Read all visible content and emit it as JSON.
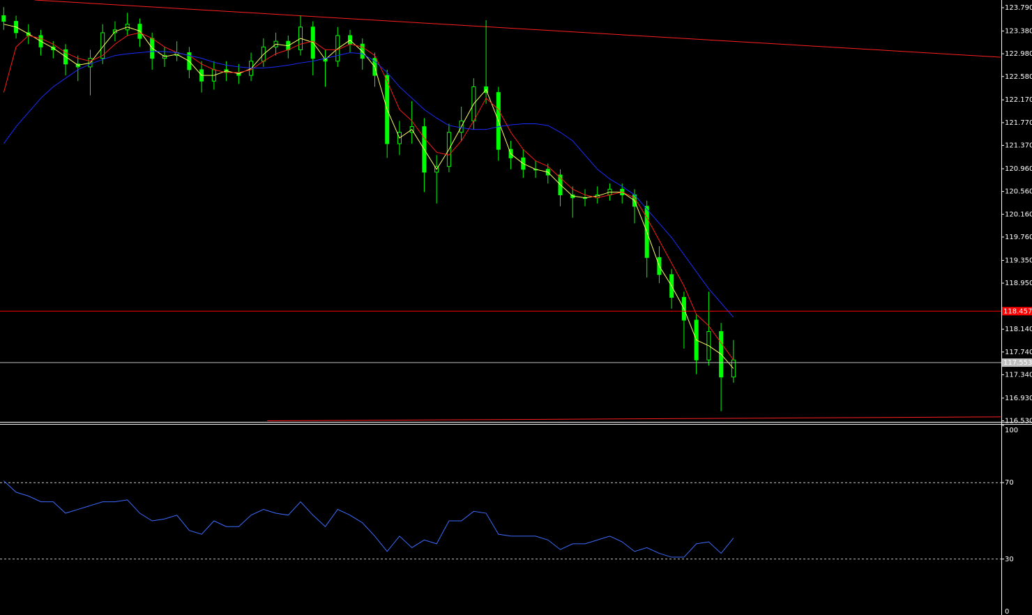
{
  "chart_data": [
    {
      "type": "candlestick",
      "xlim": [
        -0.3,
        80.6
      ],
      "ylim": [
        116.5,
        123.925
      ],
      "yticks": [
        {
          "value": 123.79,
          "label": "123.790"
        },
        {
          "value": 123.38,
          "label": "123.380"
        },
        {
          "value": 122.98,
          "label": "122.980"
        },
        {
          "value": 122.58,
          "label": "122.580"
        },
        {
          "value": 122.17,
          "label": "122.170"
        },
        {
          "value": 121.77,
          "label": "121.770"
        },
        {
          "value": 121.37,
          "label": "121.370"
        },
        {
          "value": 120.96,
          "label": "120.960"
        },
        {
          "value": 120.56,
          "label": "120.560"
        },
        {
          "value": 120.16,
          "label": "120.160"
        },
        {
          "value": 119.76,
          "label": "119.760"
        },
        {
          "value": 119.35,
          "label": "119.350"
        },
        {
          "value": 118.95,
          "label": "118.950"
        },
        {
          "value": 118.14,
          "label": "118.140"
        },
        {
          "value": 117.74,
          "label": "117.740"
        },
        {
          "value": 117.34,
          "label": "117.340"
        },
        {
          "value": 116.93,
          "label": "116.930"
        },
        {
          "value": 116.53,
          "label": "116.530"
        }
      ],
      "color": "#00ff00",
      "open": [
        123.65,
        123.55,
        123.35,
        123.3,
        123.1,
        123.05,
        122.8,
        122.75,
        122.9,
        123.35,
        123.4,
        123.5,
        123.25,
        122.9,
        122.95,
        123.0,
        122.7,
        122.5,
        122.7,
        122.65,
        122.6,
        122.85,
        123.1,
        123.2,
        123.05,
        123.45,
        122.9,
        122.85,
        123.3,
        123.15,
        122.9,
        122.6,
        121.4,
        121.6,
        121.7,
        120.9,
        121.0,
        121.6,
        121.8,
        122.4,
        122.3,
        121.3,
        121.15,
        120.95,
        120.95,
        120.85,
        120.5,
        120.45,
        120.45,
        120.5,
        120.6,
        120.5,
        120.3,
        119.4,
        119.1,
        118.7,
        118.3,
        117.6,
        118.1,
        117.3
      ],
      "high": [
        123.8,
        123.65,
        123.5,
        123.4,
        123.2,
        123.15,
        122.95,
        123.05,
        123.5,
        123.55,
        123.7,
        123.6,
        123.35,
        123.1,
        123.2,
        123.1,
        122.85,
        122.85,
        122.85,
        122.8,
        123.0,
        123.25,
        123.35,
        123.3,
        123.65,
        123.55,
        123.05,
        123.45,
        123.4,
        123.25,
        123.0,
        122.7,
        121.8,
        122.15,
        121.85,
        121.2,
        121.75,
        122.05,
        122.55,
        123.57,
        122.4,
        121.45,
        121.3,
        121.1,
        121.05,
        120.95,
        120.65,
        120.6,
        120.65,
        120.7,
        120.7,
        120.6,
        120.4,
        119.6,
        119.2,
        118.8,
        118.4,
        118.8,
        118.25,
        117.95
      ],
      "low": [
        123.4,
        123.25,
        123.15,
        122.95,
        122.9,
        122.6,
        122.5,
        122.25,
        122.8,
        123.2,
        123.3,
        123.1,
        122.7,
        122.75,
        122.85,
        122.55,
        122.3,
        122.35,
        122.5,
        122.45,
        122.5,
        122.75,
        122.95,
        122.9,
        122.95,
        122.6,
        122.4,
        122.75,
        123.0,
        122.7,
        122.4,
        121.15,
        121.2,
        121.4,
        120.55,
        120.35,
        120.9,
        121.45,
        121.65,
        122.1,
        121.1,
        120.95,
        120.8,
        120.8,
        120.7,
        120.3,
        120.1,
        120.3,
        120.35,
        120.4,
        120.35,
        120.0,
        119.05,
        118.95,
        118.5,
        117.8,
        117.35,
        117.5,
        116.7,
        117.2
      ],
      "close": [
        123.55,
        123.35,
        123.3,
        123.1,
        123.05,
        122.8,
        122.75,
        122.9,
        123.35,
        123.4,
        123.5,
        123.25,
        122.9,
        122.95,
        123.0,
        122.7,
        122.5,
        122.7,
        122.65,
        122.6,
        122.85,
        123.1,
        123.2,
        123.05,
        123.45,
        122.9,
        122.85,
        123.3,
        123.15,
        122.9,
        122.6,
        121.4,
        121.6,
        121.7,
        120.9,
        121.0,
        121.6,
        121.8,
        122.4,
        122.3,
        121.3,
        121.15,
        120.95,
        120.95,
        120.85,
        120.5,
        120.45,
        120.45,
        120.5,
        120.6,
        120.5,
        120.3,
        119.4,
        119.1,
        118.7,
        118.3,
        117.6,
        118.1,
        117.3,
        117.6
      ],
      "series": [
        {
          "color": "#ffff66",
          "values": [
            123.5,
            123.45,
            123.33,
            123.2,
            123.08,
            122.93,
            122.78,
            122.82,
            123.1,
            123.37,
            123.45,
            123.38,
            123.08,
            122.93,
            122.97,
            122.85,
            122.6,
            122.6,
            122.68,
            122.63,
            122.72,
            122.97,
            123.15,
            123.12,
            123.25,
            123.18,
            122.88,
            123.07,
            123.22,
            123.02,
            122.75,
            122.0,
            121.5,
            121.65,
            121.3,
            120.95,
            121.3,
            121.7,
            122.1,
            122.35,
            121.8,
            121.22,
            121.05,
            120.95,
            120.9,
            120.68,
            120.48,
            120.45,
            120.48,
            120.55,
            120.55,
            120.4,
            119.85,
            119.25,
            118.9,
            118.5,
            117.95,
            117.85,
            117.7,
            117.45
          ]
        },
        {
          "color": "#ff1a1a",
          "values": [
            122.3,
            123.1,
            123.3,
            123.25,
            123.15,
            123.0,
            122.9,
            122.85,
            122.95,
            123.15,
            123.3,
            123.35,
            123.25,
            123.1,
            123.0,
            122.95,
            122.8,
            122.7,
            122.65,
            122.65,
            122.7,
            122.85,
            122.98,
            123.05,
            123.15,
            123.2,
            123.05,
            123.05,
            123.15,
            123.1,
            122.95,
            122.5,
            122.0,
            121.8,
            121.5,
            121.25,
            121.2,
            121.45,
            121.8,
            122.2,
            122.0,
            121.6,
            121.3,
            121.1,
            121.0,
            120.8,
            120.6,
            120.5,
            120.45,
            120.5,
            120.55,
            120.45,
            120.1,
            119.7,
            119.3,
            118.9,
            118.4,
            118.2,
            117.9,
            117.6
          ]
        },
        {
          "color": "#1a2cff",
          "values": [
            121.4,
            121.7,
            121.95,
            122.2,
            122.4,
            122.55,
            122.7,
            122.8,
            122.88,
            122.95,
            122.98,
            123.0,
            123.02,
            123.02,
            123.0,
            122.95,
            122.9,
            122.83,
            122.78,
            122.75,
            122.73,
            122.73,
            122.75,
            122.78,
            122.82,
            122.85,
            122.9,
            122.95,
            123.0,
            122.98,
            122.85,
            122.65,
            122.4,
            122.2,
            122.0,
            121.85,
            121.72,
            121.68,
            121.65,
            121.65,
            121.7,
            121.73,
            121.75,
            121.75,
            121.72,
            121.6,
            121.45,
            121.2,
            120.95,
            120.78,
            120.65,
            120.5,
            120.25,
            120.0,
            119.75,
            119.45,
            119.15,
            118.85,
            118.6,
            118.35
          ]
        }
      ],
      "trend_lines": [
        {
          "color": "#ff2020",
          "x": [
            2.5,
            80.6
          ],
          "y": [
            123.925,
            122.92
          ]
        },
        {
          "color": "#ff2020",
          "x": [
            21.3,
            80.6
          ],
          "y": [
            116.53,
            116.6
          ]
        }
      ],
      "hlines": [
        {
          "value": 118.457,
          "color": "#ff0000"
        },
        {
          "value": 117.553,
          "color": "#c0c0c0"
        }
      ]
    },
    {
      "type": "line",
      "xlim": [
        -0.3,
        80.6
      ],
      "ylim": [
        0,
        100
      ],
      "yticks": [
        0,
        30,
        70,
        100
      ],
      "levels": [
        30,
        70
      ],
      "color": "#3d6cff",
      "values": [
        71,
        65,
        63,
        60,
        60,
        54,
        56,
        58,
        60,
        60,
        61,
        54,
        50,
        51,
        53,
        45,
        43,
        50,
        47,
        47,
        53,
        56,
        54,
        53,
        60,
        53,
        47,
        56,
        53,
        49,
        42,
        34,
        42,
        36,
        40,
        38,
        50,
        50,
        55,
        54,
        43,
        42,
        42,
        42,
        40,
        35,
        38,
        38,
        40,
        42,
        39,
        34,
        36,
        33,
        31,
        31,
        38,
        39,
        33,
        41
      ]
    }
  ]
}
